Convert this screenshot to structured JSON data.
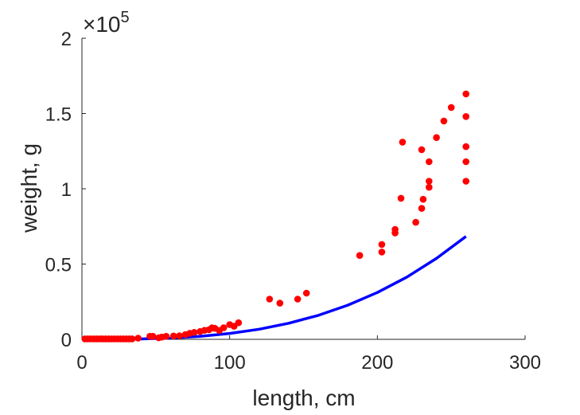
{
  "chart_data": {
    "type": "scatter",
    "title": "",
    "xlabel": "length, cm",
    "ylabel": "weight, g",
    "xlim": [
      0,
      300
    ],
    "ylim": [
      0,
      200000
    ],
    "x_ticks": [
      0,
      100,
      200,
      300
    ],
    "x_tick_labels": [
      "0",
      "100",
      "200",
      "300"
    ],
    "y_ticks": [
      0,
      50000,
      100000,
      150000,
      200000
    ],
    "y_tick_labels": [
      "0",
      "0.5",
      "1",
      "1.5",
      "2"
    ],
    "y_multiplier": {
      "base": "×10",
      "exponent": "5"
    },
    "grid": false,
    "legend": "none",
    "colors": {
      "points": "#ff0000",
      "fit": "#0000ff",
      "axis": "#262626"
    },
    "series": [
      {
        "kind": "points",
        "x": [
          2,
          4,
          6,
          8,
          10,
          12,
          14,
          16,
          18,
          20,
          22,
          24,
          26,
          28,
          30,
          32,
          34,
          38,
          46,
          48,
          52,
          54,
          57,
          62,
          66,
          70,
          73,
          76,
          80,
          83,
          86,
          88,
          90,
          93,
          96,
          100,
          103,
          106,
          127,
          134,
          146,
          152,
          188,
          203,
          203,
          212,
          212,
          216,
          217,
          226,
          230,
          230,
          231,
          235,
          235,
          235,
          240,
          245,
          250,
          260,
          260,
          260,
          260,
          260
        ],
        "y": [
          300,
          300,
          300,
          300,
          300,
          300,
          300,
          300,
          300,
          300,
          300,
          300,
          300,
          300,
          300,
          300,
          300,
          800,
          2000,
          2000,
          1000,
          1500,
          2000,
          2200,
          2400,
          3200,
          4000,
          4600,
          5200,
          6000,
          6400,
          7600,
          7300,
          5900,
          7700,
          9800,
          8700,
          11000,
          26700,
          24000,
          26700,
          30700,
          55700,
          63000,
          58000,
          73000,
          70700,
          93700,
          131000,
          77700,
          126000,
          87000,
          93000,
          105000,
          101000,
          118000,
          134000,
          145000,
          154000,
          163000,
          148000,
          128000,
          118000,
          105000
        ]
      },
      {
        "kind": "fit",
        "x": [
          2,
          20,
          40,
          60,
          80,
          100,
          120,
          140,
          160,
          180,
          200,
          220,
          240,
          260
        ],
        "y": [
          0,
          30,
          250,
          840,
          1990,
          3890,
          6720,
          10670,
          15930,
          22680,
          31110,
          41400,
          53760,
          68350
        ]
      }
    ]
  }
}
